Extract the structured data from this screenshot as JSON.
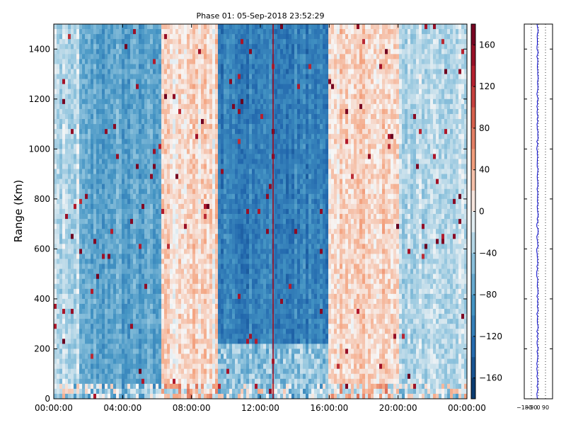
{
  "chart_data": [
    {
      "type": "heatmap",
      "title": "Phase 01: 05-Sep-2018 23:52:29",
      "xlabel": "",
      "ylabel": "Range (Km)",
      "x_ticks": [
        "00:00:00",
        "04:00:00",
        "08:00:00",
        "12:00:00",
        "16:00:00",
        "20:00:00",
        "00:00:00"
      ],
      "x_range_hours": [
        0,
        24
      ],
      "y_ticks": [
        0,
        200,
        400,
        600,
        800,
        1000,
        1200,
        1400
      ],
      "ylim": [
        0,
        1500
      ],
      "colorbar": {
        "ticks": [
          -160,
          -120,
          -80,
          -40,
          0,
          40,
          80,
          120,
          160
        ],
        "range": [
          -180,
          180
        ],
        "colormap": "RdBu_r",
        "low_color": "#053061",
        "mid_color": "#f7f7f7",
        "high_color": "#67001f"
      },
      "description_bands": [
        {
          "from_h": 0.0,
          "to_h": 1.4,
          "mean_value": -25
        },
        {
          "from_h": 1.4,
          "to_h": 6.2,
          "mean_value": -75
        },
        {
          "from_h": 6.2,
          "to_h": 9.5,
          "mean_value": 15
        },
        {
          "from_h": 9.5,
          "to_h": 16.0,
          "mean_value": -110
        },
        {
          "from_h": 16.0,
          "to_h": 20.0,
          "mean_value": 20
        },
        {
          "from_h": 20.0,
          "to_h": 24.0,
          "mean_value": -25
        }
      ]
    },
    {
      "type": "line",
      "title": "",
      "x_ticks": [
        "−180",
        "−90",
        "0",
        "90"
      ],
      "xlim": [
        -180,
        180
      ],
      "ylim": [
        0,
        1500
      ],
      "series_color": "#0000cc",
      "grid": "dotted vertical"
    }
  ]
}
